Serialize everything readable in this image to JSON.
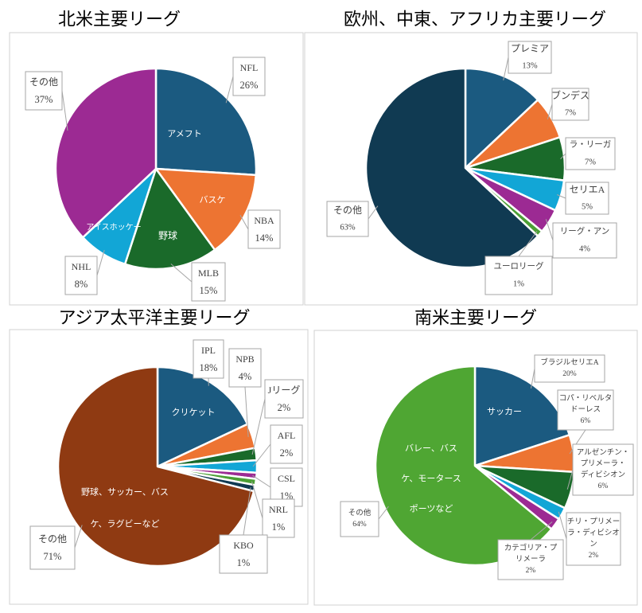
{
  "chart_data": [
    {
      "type": "pie",
      "title": "北米主要リーグ",
      "series": [
        {
          "name": "NFL",
          "value": 26,
          "label": "26%",
          "inner_label": "アメフト",
          "color": "#1b5a80"
        },
        {
          "name": "NBA",
          "value": 14,
          "label": "14%",
          "inner_label": "バスケ",
          "color": "#ed7432"
        },
        {
          "name": "MLB",
          "value": 15,
          "label": "15%",
          "inner_label": "野球",
          "color": "#1a6a2a"
        },
        {
          "name": "NHL",
          "value": 8,
          "label": "8%",
          "inner_label": "アイスホッケー",
          "color": "#12a6d6"
        },
        {
          "name": "その他",
          "value": 37,
          "label": "37%",
          "inner_label": "",
          "color": "#9c2a93"
        }
      ]
    },
    {
      "type": "pie",
      "title": "欧州、中東、アフリカ主要リーグ",
      "series": [
        {
          "name": "プレミア",
          "value": 13,
          "label": "13%",
          "color": "#1b5a80"
        },
        {
          "name": "ブンデス",
          "value": 7,
          "label": "7%",
          "color": "#ed7432"
        },
        {
          "name": "ラ・リーガ",
          "value": 7,
          "label": "7%",
          "color": "#1a6a2a"
        },
        {
          "name": "セリエA",
          "value": 5,
          "label": "5%",
          "color": "#12a6d6"
        },
        {
          "name": "リーグ・アン",
          "value": 4,
          "label": "4%",
          "color": "#9c2a93"
        },
        {
          "name": "ユーロリーグ",
          "value": 1,
          "label": "1%",
          "color": "#4c9f35"
        },
        {
          "name": "その他",
          "value": 63,
          "label": "63%",
          "color": "#103a52"
        }
      ]
    },
    {
      "type": "pie",
      "title": "アジア太平洋主要リーグ",
      "series": [
        {
          "name": "IPL",
          "value": 18,
          "label": "18%",
          "inner_label": "クリケット",
          "color": "#1b5a80"
        },
        {
          "name": "NPB",
          "value": 4,
          "label": "4%",
          "color": "#ed7432"
        },
        {
          "name": "Jリーグ",
          "value": 2,
          "label": "2%",
          "color": "#1a6a2a"
        },
        {
          "name": "AFL",
          "value": 2,
          "label": "2%",
          "color": "#12a6d6"
        },
        {
          "name": "CSL",
          "value": 1,
          "label": "1%",
          "color": "#9c2a93"
        },
        {
          "name": "NRL",
          "value": 1,
          "label": "1%",
          "color": "#4c9f35"
        },
        {
          "name": "KBO",
          "value": 1,
          "label": "1%",
          "color": "#103a52"
        },
        {
          "name": "その他",
          "value": 71,
          "label": "71%",
          "inner_label_lines": [
            "野球、サッカー、バス",
            "ケ、ラグビーなど"
          ],
          "color": "#8f3a12"
        }
      ]
    },
    {
      "type": "pie",
      "title": "南米主要リーグ",
      "series": [
        {
          "name": "ブラジルセリエA",
          "value": 20,
          "label": "20%",
          "inner_label": "サッカー",
          "color": "#1b5a80"
        },
        {
          "name": "コパ・リベルタドーレス",
          "name_lines": [
            "コパ・リベルタ",
            "ドーレス"
          ],
          "value": 6,
          "label": "6%",
          "color": "#ed7432"
        },
        {
          "name": "アルゼンチン・プリメーラ・ディビシオン",
          "name_lines": [
            "アルゼンチン・",
            "プリメーラ・",
            "ディビシオン"
          ],
          "value": 6,
          "label": "6%",
          "color": "#1a6a2a"
        },
        {
          "name": "チリ・プリメーラ・ディビシオン",
          "name_lines": [
            "チリ・プリメー",
            "ラ・ディビシオ",
            "ン"
          ],
          "value": 2,
          "label": "2%",
          "color": "#12a6d6"
        },
        {
          "name": "カテゴリア・プリメーラ",
          "name_lines": [
            "カテゴリア・プ",
            "リメーラ"
          ],
          "value": 2,
          "label": "2%",
          "color": "#9c2a93"
        },
        {
          "name": "その他",
          "value": 64,
          "label": "64%",
          "inner_label_lines": [
            "バレー、バス",
            "ケ、モータース",
            "ポーツなど"
          ],
          "color": "#4fa633"
        }
      ]
    }
  ]
}
